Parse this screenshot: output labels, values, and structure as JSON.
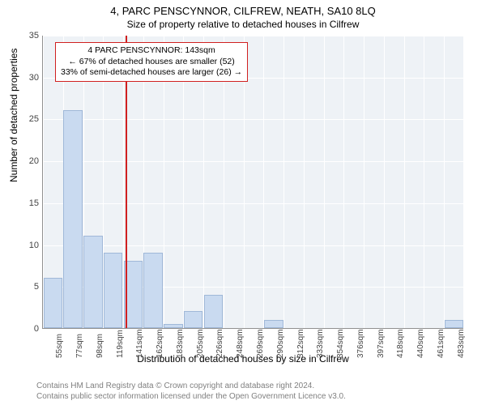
{
  "title": "4, PARC PENSCYNNOR, CILFREW, NEATH, SA10 8LQ",
  "subtitle": "Size of property relative to detached houses in Cilfrew",
  "ylabel": "Number of detached properties",
  "xlabel": "Distribution of detached houses by size in Cilfrew",
  "chart": {
    "type": "histogram",
    "background_color": "#eef2f6",
    "grid_color": "#ffffff",
    "bar_color": "#c9daf0",
    "bar_border_color": "#a0b8d8",
    "marker_color": "#d02020",
    "ylim": [
      0,
      35
    ],
    "ytick_step": 5,
    "yticks": [
      0,
      5,
      10,
      15,
      20,
      25,
      30,
      35
    ],
    "xticks": [
      "55sqm",
      "77sqm",
      "98sqm",
      "119sqm",
      "141sqm",
      "162sqm",
      "183sqm",
      "205sqm",
      "226sqm",
      "248sqm",
      "269sqm",
      "290sqm",
      "312sqm",
      "333sqm",
      "354sqm",
      "376sqm",
      "397sqm",
      "418sqm",
      "440sqm",
      "461sqm",
      "483sqm"
    ],
    "values": [
      6,
      26,
      11,
      9,
      8,
      9,
      0.5,
      2,
      4,
      0,
      0,
      1,
      0,
      0,
      0,
      0,
      0,
      0,
      0,
      0,
      1
    ],
    "bar_width": 0.95,
    "marker_x_bin": 4.1
  },
  "annotation": {
    "line1": "4 PARC PENSCYNNOR: 143sqm",
    "line2": "← 67% of detached houses are smaller (52)",
    "line3": "33% of semi-detached houses are larger (26) →"
  },
  "footer": {
    "line1": "Contains HM Land Registry data © Crown copyright and database right 2024.",
    "line2": "Contains public sector information licensed under the Open Government Licence v3.0."
  }
}
